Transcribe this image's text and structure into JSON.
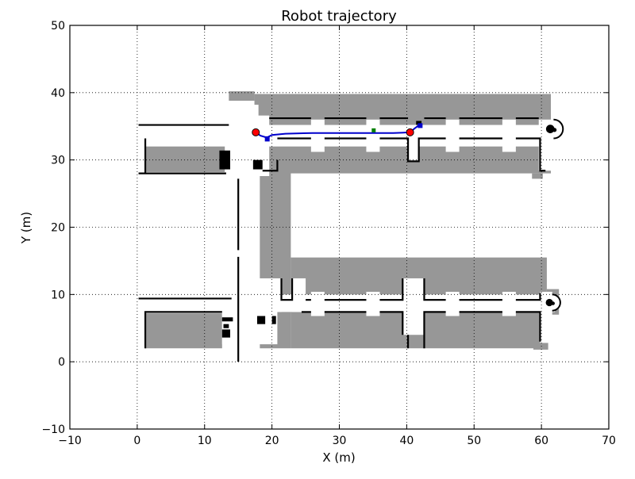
{
  "chart_data": {
    "type": "scatter",
    "title": "Robot trajectory",
    "xlabel": "X (m)",
    "ylabel": "Y (m)",
    "xlim": [
      -10,
      70
    ],
    "ylim": [
      -10,
      50
    ],
    "xticks": [
      -10,
      0,
      10,
      20,
      30,
      40,
      50,
      60,
      70
    ],
    "yticks": [
      -10,
      0,
      10,
      20,
      30,
      40,
      50
    ],
    "grid": true,
    "colors": {
      "explored": "#979797",
      "wall": "#000000",
      "free": "#ffffff",
      "trajectory": "#0000cc",
      "waypoint": "#ff0000",
      "marker": "#008000"
    },
    "map": {
      "gray_regions": [
        {
          "x0": 13.6,
          "x1": 17.4,
          "y0": 38.8,
          "y1": 40.2
        },
        {
          "x0": 17.4,
          "x1": 61.4,
          "y0": 28.0,
          "y1": 39.8
        },
        {
          "x0": 1.2,
          "x1": 13.4,
          "y0": 28.2,
          "y1": 33.2
        },
        {
          "x0": 18.2,
          "x1": 22.8,
          "y0": 2.0,
          "y1": 28.2
        },
        {
          "x0": 22.8,
          "x1": 60.8,
          "y0": 2.0,
          "y1": 15.5
        },
        {
          "x0": 1.2,
          "x1": 12.6,
          "y0": 2.0,
          "y1": 7.2
        },
        {
          "x0": 58.6,
          "x1": 60.2,
          "y0": 27.2,
          "y1": 28.0
        },
        {
          "x0": 58.8,
          "x1": 61.0,
          "y0": 1.8,
          "y1": 3.4
        },
        {
          "x0": 60.8,
          "x1": 62.6,
          "y0": 7.0,
          "y1": 10.8
        }
      ],
      "white_regions": [
        {
          "x0": 0.2,
          "x1": 62.0,
          "y0": 32.0,
          "y1": 35.2
        },
        {
          "x0": 0.2,
          "x1": 62.0,
          "y0": 7.4,
          "y1": 10.0
        },
        {
          "x0": 14.0,
          "x1": 18.0,
          "y0": 0,
          "y1": 38.2
        },
        {
          "x0": 12.6,
          "x1": 20.8,
          "y0": 2.6,
          "y1": 10.0
        },
        {
          "x0": 13.0,
          "x1": 19.6,
          "y0": 27.6,
          "y1": 36.6
        },
        {
          "x0": 13.6,
          "x1": 17.6,
          "y0": 16.0,
          "y1": 19.2
        },
        {
          "x0": 17.4,
          "x1": 21.4,
          "y0": 7.4,
          "y1": 12.4
        },
        {
          "x0": 23.0,
          "x1": 25.0,
          "y0": 7.4,
          "y1": 12.4
        },
        {
          "x0": 25.8,
          "x1": 27.8,
          "y0": 6.8,
          "y1": 10.4
        },
        {
          "x0": 34.0,
          "x1": 36.0,
          "y0": 6.8,
          "y1": 10.4
        },
        {
          "x0": 39.4,
          "x1": 42.6,
          "y0": 4.0,
          "y1": 12.4
        },
        {
          "x0": 45.8,
          "x1": 47.8,
          "y0": 6.8,
          "y1": 10.4
        },
        {
          "x0": 54.2,
          "x1": 56.2,
          "y0": 6.8,
          "y1": 10.4
        },
        {
          "x0": 40.2,
          "x1": 41.8,
          "y0": 29.8,
          "y1": 35.2
        },
        {
          "x0": 25.8,
          "x1": 27.8,
          "y0": 31.2,
          "y1": 36.0
        },
        {
          "x0": 34.0,
          "x1": 36.0,
          "y0": 31.2,
          "y1": 36.0
        },
        {
          "x0": 45.8,
          "x1": 47.8,
          "y0": 31.2,
          "y1": 36.0
        },
        {
          "x0": 54.2,
          "x1": 56.2,
          "y0": 31.2,
          "y1": 36.0
        },
        {
          "x0": 59.6,
          "x1": 61.6,
          "y0": 28.4,
          "y1": 36.0
        },
        {
          "x0": 59.8,
          "x1": 61.6,
          "y0": 2.8,
          "y1": 10.4
        }
      ],
      "black_blocks": [
        {
          "x0": 12.2,
          "x1": 13.8,
          "y0": 28.6,
          "y1": 31.4
        },
        {
          "x0": 17.2,
          "x1": 18.6,
          "y0": 28.6,
          "y1": 30.0
        },
        {
          "x0": 12.6,
          "x1": 14.2,
          "y0": 6.0,
          "y1": 6.6
        },
        {
          "x0": 12.8,
          "x1": 13.6,
          "y0": 5.0,
          "y1": 5.6
        },
        {
          "x0": 12.6,
          "x1": 13.8,
          "y0": 3.6,
          "y1": 4.8
        },
        {
          "x0": 17.8,
          "x1": 19.0,
          "y0": 5.6,
          "y1": 6.8
        },
        {
          "x0": 20.0,
          "x1": 20.6,
          "y0": 5.6,
          "y1": 6.8
        },
        {
          "x0": 41.4,
          "x1": 42.2,
          "y0": 35.2,
          "y1": 35.8
        }
      ],
      "walls": [
        [
          [
            0.2,
            35.2
          ],
          [
            13.6,
            35.2
          ]
        ],
        [
          [
            0.2,
            28.0
          ],
          [
            13.2,
            28.0
          ]
        ],
        [
          [
            1.2,
            28.0
          ],
          [
            1.2,
            33.2
          ]
        ],
        [
          [
            18.6,
            28.4
          ],
          [
            20.8,
            28.4
          ],
          [
            20.8,
            30.0
          ]
        ],
        [
          [
            19.6,
            36.2
          ],
          [
            25.8,
            36.2
          ]
        ],
        [
          [
            27.8,
            36.2
          ],
          [
            34.0,
            36.2
          ]
        ],
        [
          [
            36.0,
            36.2
          ],
          [
            40.2,
            36.2
          ]
        ],
        [
          [
            42.6,
            36.2
          ],
          [
            45.8,
            36.2
          ]
        ],
        [
          [
            47.8,
            36.2
          ],
          [
            54.2,
            36.2
          ]
        ],
        [
          [
            56.2,
            36.2
          ],
          [
            59.6,
            36.2
          ]
        ],
        [
          [
            20.8,
            33.2
          ],
          [
            25.8,
            33.2
          ]
        ],
        [
          [
            27.8,
            33.2
          ],
          [
            34.0,
            33.2
          ]
        ],
        [
          [
            36.0,
            33.2
          ],
          [
            40.2,
            33.2
          ],
          [
            40.2,
            29.8
          ],
          [
            41.8,
            29.8
          ],
          [
            41.8,
            33.2
          ],
          [
            45.8,
            33.2
          ]
        ],
        [
          [
            47.8,
            33.2
          ],
          [
            54.2,
            33.2
          ]
        ],
        [
          [
            56.2,
            33.2
          ],
          [
            59.8,
            33.2
          ],
          [
            59.8,
            28.4
          ],
          [
            60.6,
            28.4
          ]
        ],
        [
          [
            15.0,
            27.2
          ],
          [
            15.0,
            16.6
          ]
        ],
        [
          [
            15.0,
            15.6
          ],
          [
            15.0,
            0.0
          ]
        ],
        [
          [
            0.2,
            9.4
          ],
          [
            14.0,
            9.4
          ]
        ],
        [
          [
            1.2,
            2.0
          ],
          [
            1.2,
            7.4
          ],
          [
            12.6,
            7.4
          ]
        ],
        [
          [
            21.4,
            12.4
          ],
          [
            21.4,
            9.2
          ],
          [
            23.0,
            9.2
          ],
          [
            23.0,
            12.4
          ]
        ],
        [
          [
            25.0,
            9.2
          ],
          [
            25.8,
            9.2
          ]
        ],
        [
          [
            27.8,
            9.2
          ],
          [
            34.0,
            9.2
          ]
        ],
        [
          [
            36.0,
            9.2
          ],
          [
            39.4,
            9.2
          ],
          [
            39.4,
            12.4
          ]
        ],
        [
          [
            42.6,
            12.4
          ],
          [
            42.6,
            9.2
          ],
          [
            45.8,
            9.2
          ]
        ],
        [
          [
            47.8,
            9.2
          ],
          [
            54.2,
            9.2
          ]
        ],
        [
          [
            56.2,
            9.2
          ],
          [
            59.8,
            9.2
          ],
          [
            59.8,
            10.2
          ]
        ],
        [
          [
            24.4,
            7.4
          ],
          [
            25.8,
            7.4
          ]
        ],
        [
          [
            27.8,
            7.4
          ],
          [
            34.0,
            7.4
          ]
        ],
        [
          [
            36.0,
            7.4
          ],
          [
            39.4,
            7.4
          ],
          [
            39.4,
            4.0
          ]
        ],
        [
          [
            42.6,
            2.0
          ],
          [
            42.6,
            7.4
          ],
          [
            45.8,
            7.4
          ]
        ],
        [
          [
            47.8,
            7.4
          ],
          [
            54.2,
            7.4
          ]
        ],
        [
          [
            56.2,
            7.4
          ],
          [
            59.8,
            7.4
          ],
          [
            59.8,
            3.0
          ]
        ],
        [
          [
            40.2,
            2.0
          ],
          [
            40.2,
            4.0
          ]
        ]
      ],
      "semicircles": [
        {
          "cx": 61.8,
          "cy": 34.6,
          "r": 1.4
        },
        {
          "cx": 61.6,
          "cy": 8.8,
          "r": 1.2
        }
      ]
    },
    "trajectory": [
      {
        "x": 17.6,
        "y": 34.1
      },
      {
        "x": 18.3,
        "y": 33.6
      },
      {
        "x": 19.0,
        "y": 33.4
      },
      {
        "x": 19.4,
        "y": 33.4
      },
      {
        "x": 20.0,
        "y": 33.7
      },
      {
        "x": 22.0,
        "y": 33.9
      },
      {
        "x": 26.0,
        "y": 34.0
      },
      {
        "x": 30.0,
        "y": 34.0
      },
      {
        "x": 34.0,
        "y": 34.0
      },
      {
        "x": 38.0,
        "y": 34.0
      },
      {
        "x": 40.5,
        "y": 34.1
      },
      {
        "x": 41.2,
        "y": 34.7
      },
      {
        "x": 42.0,
        "y": 35.3
      }
    ],
    "trajectory_markers": [
      {
        "x": 19.3,
        "y": 33.1
      },
      {
        "x": 42.0,
        "y": 35.1
      }
    ],
    "green_marker": {
      "x": 35.1,
      "y": 34.4
    },
    "waypoints": [
      {
        "x": 17.6,
        "y": 34.1
      },
      {
        "x": 40.5,
        "y": 34.1
      }
    ]
  }
}
